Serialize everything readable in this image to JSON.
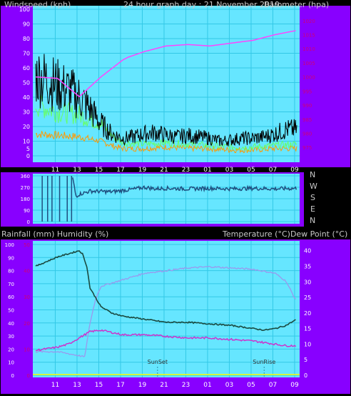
{
  "top": {
    "header_left": "Windspeed (kph)",
    "header_center": "24 hour graph day : 21 November 2019",
    "header_right": "Barometer (hpa)"
  },
  "middle": {
    "direction_labels": [
      "N",
      "W",
      "S",
      "E",
      "N"
    ],
    "header_left": "Rainfall (mm)  Humidity (%)",
    "header_right": "Temperature (°C)Dew Point (°C)"
  },
  "bottom": {
    "sunset_label": "SunSet",
    "sunrise_label": "SunRise"
  },
  "colors": {
    "frame": "#8800ff",
    "plot_bg": "#66e6ff",
    "grid": "#33c8e6",
    "wind_gust": "#000000",
    "wind_avg": "#66ff66",
    "wind_low": "#ff9900",
    "barometer": "#ff44ff",
    "direction": "#1f4f7f",
    "temperature": "#1a4a40",
    "dew_point": "#cc33cc",
    "humidity": "#9999ee",
    "rain_line": "#ffff00",
    "right_axis_text": "#cc0077",
    "left_axis_text": "#ffffff"
  },
  "chart_data": [
    {
      "type": "line",
      "name": "windspeed-barometer",
      "x_ticks": [
        "11",
        "13",
        "15",
        "17",
        "19",
        "21",
        "23",
        "01",
        "03",
        "05",
        "07",
        "09"
      ],
      "left_axis_ticks": [
        0,
        5,
        10,
        20,
        30,
        40,
        50,
        60,
        70,
        80,
        90,
        100
      ],
      "right_axis_ticks": [
        975,
        980,
        985,
        990,
        995,
        1000,
        1005,
        1010,
        1015,
        1020
      ],
      "ylim_left": [
        0,
        100
      ],
      "ylim_right": [
        972,
        1024
      ],
      "grid": true,
      "series_barometer": {
        "hours": [
          0,
          2,
          4,
          6,
          8,
          8.5,
          10,
          12,
          14,
          16,
          18,
          20,
          22,
          24
        ],
        "values": [
          1000,
          999.5,
          993,
          1000,
          1006,
          1007,
          1009,
          1011,
          1011.5,
          1011,
          1012,
          1013,
          1015,
          1016.5
        ]
      },
      "series_wind_gust": {
        "hours": [
          0,
          1,
          2,
          3,
          4,
          5,
          6,
          7,
          8,
          9,
          10,
          11,
          12,
          13,
          14,
          15,
          16,
          17,
          18,
          19,
          20,
          21,
          22,
          23,
          24
        ],
        "values": [
          55,
          52,
          48,
          45,
          40,
          32,
          22,
          15,
          12,
          13,
          15,
          16,
          14,
          13,
          14,
          13,
          12,
          10,
          11,
          12,
          12,
          13,
          15,
          18,
          18
        ]
      },
      "series_wind_avg": {
        "hours": [
          0,
          2,
          4,
          6,
          7,
          8,
          10,
          12,
          14,
          16,
          18,
          20,
          22,
          24
        ],
        "values": [
          35,
          30,
          28,
          22,
          14,
          9,
          8,
          9,
          8,
          7,
          6,
          6,
          7,
          8
        ]
      },
      "series_wind_low": {
        "hours": [
          0,
          2,
          4,
          6,
          7,
          8,
          10,
          12,
          14,
          16,
          18,
          20,
          22,
          24
        ],
        "values": [
          15,
          14,
          13,
          10,
          7,
          5,
          5,
          6,
          5,
          5,
          4,
          4,
          5,
          5
        ]
      }
    },
    {
      "type": "line",
      "name": "wind-direction",
      "series_direction": {
        "hours": [
          0,
          3.4,
          3.7,
          4,
          5,
          7,
          9,
          10,
          11,
          12,
          14,
          16,
          18,
          20,
          22,
          24
        ],
        "values_deg": [
          360,
          345,
          200,
          215,
          240,
          235,
          255,
          270,
          258,
          262,
          258,
          262,
          258,
          262,
          258,
          262
        ]
      }
    },
    {
      "type": "line",
      "name": "rain-humidity-temperature",
      "x_ticks": [
        "11",
        "13",
        "15",
        "17",
        "19",
        "21",
        "23",
        "01",
        "03",
        "05",
        "07",
        "09"
      ],
      "left_axis_ticks": [
        0,
        10,
        20,
        30,
        40,
        50,
        60,
        70,
        80,
        90,
        100
      ],
      "red_axis_ticks": [
        0,
        10,
        20,
        30,
        40,
        50
      ],
      "right_axis_ticks": [
        0,
        5,
        10,
        15,
        20,
        25,
        30,
        35,
        40
      ],
      "ylim_left": [
        0,
        100
      ],
      "ylim_right": [
        0,
        42
      ],
      "grid": true,
      "series_temperature": {
        "hours": [
          0,
          1,
          2,
          3,
          4,
          4.3,
          4.7,
          5,
          5.5,
          6,
          7,
          8,
          10,
          12,
          14,
          16,
          18,
          20,
          21,
          22,
          23,
          24
        ],
        "values": [
          35,
          36.5,
          38,
          39,
          40,
          39,
          35,
          28,
          25,
          22,
          20,
          19,
          18,
          17,
          17,
          16.5,
          16,
          15,
          14.5,
          15,
          16,
          18
        ]
      },
      "series_dew_point": {
        "hours": [
          0,
          2,
          3,
          4,
          4.5,
          5,
          6,
          8,
          10,
          12,
          14,
          16,
          18,
          20,
          22,
          23,
          24
        ],
        "values": [
          8,
          9,
          10,
          12,
          13,
          14,
          14.5,
          13,
          13,
          12.5,
          12,
          12,
          11.5,
          11,
          10,
          9.5,
          9.5
        ]
      },
      "series_humidity": {
        "hours": [
          0,
          2,
          4,
          4.5,
          5,
          5.5,
          6,
          8,
          10,
          12,
          14,
          16,
          18,
          20,
          22,
          23,
          24
        ],
        "values": [
          18,
          18,
          15,
          14,
          40,
          58,
          68,
          73,
          78,
          80,
          82,
          83,
          82,
          81,
          78,
          72,
          56
        ]
      },
      "series_rain": {
        "hours": [
          0,
          24
        ],
        "values": [
          0,
          0
        ]
      }
    }
  ]
}
